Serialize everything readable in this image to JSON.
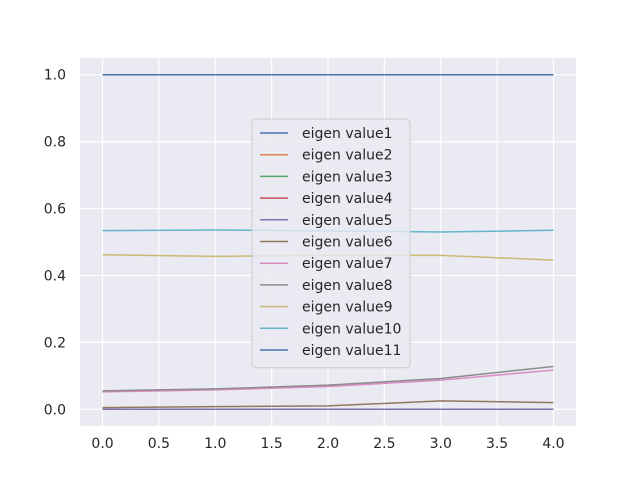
{
  "chart_data": {
    "type": "line",
    "title": "",
    "xlabel": "",
    "ylabel": "",
    "xlim": [
      -0.2,
      4.2
    ],
    "ylim": [
      -0.05,
      1.05
    ],
    "xticks": [
      "0.0",
      "0.5",
      "1.0",
      "1.5",
      "2.0",
      "2.5",
      "3.0",
      "3.5",
      "4.0"
    ],
    "yticks": [
      "0.0",
      "0.2",
      "0.4",
      "0.6",
      "0.8",
      "1.0"
    ],
    "grid": true,
    "legend_position": "center",
    "x": [
      0,
      1,
      2,
      3,
      4
    ],
    "series": [
      {
        "name": "eigen value1",
        "color": "#4c72b0",
        "values": [
          1.0,
          1.0,
          1.0,
          1.0,
          1.0
        ]
      },
      {
        "name": "eigen value2",
        "color": "#dd8452",
        "values": [
          0.0,
          0.0,
          0.0,
          0.0,
          0.0
        ]
      },
      {
        "name": "eigen value3",
        "color": "#55a868",
        "values": [
          0.0,
          0.0,
          0.0,
          0.0,
          0.0
        ]
      },
      {
        "name": "eigen value4",
        "color": "#c44e52",
        "values": [
          0.0,
          0.0,
          0.0,
          0.0,
          0.0
        ]
      },
      {
        "name": "eigen value5",
        "color": "#8172b3",
        "values": [
          0.0,
          0.0,
          0.0,
          0.0,
          0.0
        ]
      },
      {
        "name": "eigen value6",
        "color": "#937860",
        "values": [
          0.005,
          0.008,
          0.01,
          0.025,
          0.02
        ]
      },
      {
        "name": "eigen value7",
        "color": "#da8bc3",
        "values": [
          0.052,
          0.058,
          0.068,
          0.087,
          0.117
        ]
      },
      {
        "name": "eigen value8",
        "color": "#8c8c8c",
        "values": [
          0.055,
          0.061,
          0.072,
          0.092,
          0.128
        ]
      },
      {
        "name": "eigen value9",
        "color": "#ccb974",
        "values": [
          0.462,
          0.457,
          0.46,
          0.46,
          0.446
        ]
      },
      {
        "name": "eigen value10",
        "color": "#64b5cd",
        "values": [
          0.534,
          0.536,
          0.533,
          0.53,
          0.535
        ]
      },
      {
        "name": "eigen value11",
        "color": "#4c72b0",
        "values": [
          1.0,
          1.0,
          1.0,
          1.0,
          1.0
        ]
      }
    ]
  }
}
